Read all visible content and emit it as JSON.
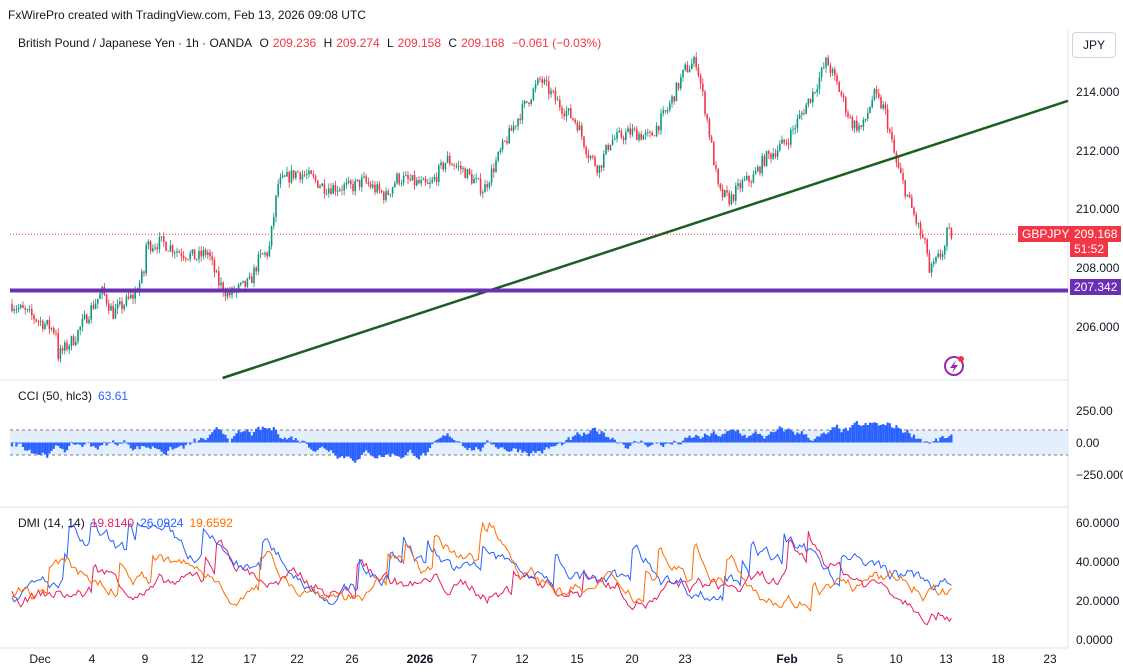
{
  "header": {
    "attribution": "FxWirePro created with TradingView.com, Feb 13, 2026 09:08 UTC",
    "currency_button": "JPY"
  },
  "legend": {
    "symbol": "British Pound / Japanese Yen · 1h · OANDA",
    "open_label": "O",
    "open": "209.236",
    "high_label": "H",
    "high": "209.274",
    "low_label": "L",
    "low": "209.158",
    "close_label": "C",
    "close": "209.168",
    "change": "−0.061 (−0.03%)"
  },
  "badges": {
    "ticker": "GBPJPY",
    "price": "209.168",
    "countdown": "51:52",
    "level": "207.342"
  },
  "colors": {
    "up": "#089981",
    "down": "#f23645",
    "trendline": "#1b5e20",
    "support": "#6a2fb3",
    "cci": "#2962ff",
    "cci_band": "#e3effd",
    "di_plus": "#e91e63",
    "di_minus": "#2962ff",
    "adx": "#ff6d00"
  },
  "icons": {
    "sync": "lightning-sync-icon"
  },
  "cci": {
    "title": "CCI (50, hlc3)",
    "value": "63.61",
    "ticks": [
      "250.00",
      "0.00",
      "−250.000"
    ]
  },
  "dmi": {
    "title": "DMI (14, 14)",
    "v1": "19.8140",
    "v2": "26.0924",
    "v3": "19.6592",
    "ticks": [
      "60.0000",
      "40.0000",
      "20.0000",
      "0.0000"
    ]
  },
  "x_ticks": [
    "Dec",
    "4",
    "9",
    "12",
    "17",
    "22",
    "26",
    "2026",
    "7",
    "12",
    "15",
    "20",
    "23",
    "Feb",
    "5",
    "10",
    "13",
    "18",
    "23"
  ],
  "chart_data": {
    "type": "candlestick",
    "title": "British Pound / Japanese Yen · 1h · OANDA",
    "y_ticks": [
      "214.000",
      "212.000",
      "210.000",
      "208.000",
      "206.000"
    ],
    "ylim": [
      204.5,
      215.8
    ],
    "x_labels": [
      "Dec",
      "4",
      "9",
      "12",
      "17",
      "22",
      "26",
      "2026",
      "7",
      "12",
      "15",
      "20",
      "23",
      "Feb",
      "5",
      "10",
      "13",
      "18",
      "23"
    ],
    "path_points": [
      [
        "Dec 1",
        206.9
      ],
      [
        "Dec 2",
        206.0
      ],
      [
        "Dec 2",
        205.2
      ],
      [
        "Dec 3",
        205.8
      ],
      [
        "Dec 4",
        206.8
      ],
      [
        "Dec 5",
        207.3
      ],
      [
        "Dec 6",
        206.6
      ],
      [
        "Dec 8",
        207.2
      ],
      [
        "Dec 9",
        208.0
      ],
      [
        "Dec 9",
        208.8
      ],
      [
        "Dec 10",
        208.9
      ],
      [
        "Dec 11",
        208.6
      ],
      [
        "Dec 12",
        208.4
      ],
      [
        "Dec 13",
        208.6
      ],
      [
        "Dec 14",
        207.6
      ],
      [
        "Dec 15",
        207.2
      ],
      [
        "Dec 16",
        207.4
      ],
      [
        "Dec 17",
        207.6
      ],
      [
        "Dec 18",
        208.4
      ],
      [
        "Dec 19",
        208.6
      ],
      [
        "Dec 20",
        210.8
      ],
      [
        "Dec 22",
        211.2
      ],
      [
        "Dec 23",
        211.0
      ],
      [
        "Dec 24",
        210.7
      ],
      [
        "Dec 26",
        210.7
      ],
      [
        "Dec 27",
        210.9
      ],
      [
        "Dec 29",
        210.4
      ],
      [
        "Dec 30",
        211.0
      ],
      [
        "Jan 1",
        210.8
      ],
      [
        "Jan 2",
        210.7
      ],
      [
        "Jan 4",
        211.6
      ],
      [
        "Jan 6",
        211.2
      ],
      [
        "Jan 8",
        210.6
      ],
      [
        "Jan 10",
        212.0
      ],
      [
        "Jan 12",
        213.2
      ],
      [
        "Jan 13",
        214.2
      ],
      [
        "Jan 14",
        213.4
      ],
      [
        "Jan 15",
        212.8
      ],
      [
        "Jan 16",
        211.8
      ],
      [
        "Jan 17",
        211.3
      ],
      [
        "Jan 18",
        212.2
      ],
      [
        "Jan 20",
        212.5
      ],
      [
        "Jan 21",
        212.3
      ],
      [
        "Jan 22",
        213.2
      ],
      [
        "Jan 23",
        214.5
      ],
      [
        "Jan 24",
        214.8
      ],
      [
        "Jan 25",
        212.8
      ],
      [
        "Jan 26",
        210.5
      ],
      [
        "Jan 27",
        210.3
      ],
      [
        "Jan 28",
        210.8
      ],
      [
        "Jan 29",
        211.0
      ],
      [
        "Jan 30",
        211.6
      ],
      [
        "Feb 1",
        212.2
      ],
      [
        "Feb 2",
        213.0
      ],
      [
        "Feb 3",
        213.8
      ],
      [
        "Feb 4",
        214.8
      ],
      [
        "Feb 5",
        213.8
      ],
      [
        "Feb 6",
        212.8
      ],
      [
        "Feb 7",
        212.6
      ],
      [
        "Feb 8",
        213.7
      ],
      [
        "Feb 9",
        213.2
      ],
      [
        "Feb 10",
        211.5
      ],
      [
        "Feb 11",
        209.9
      ],
      [
        "Feb 12",
        208.4
      ],
      [
        "Feb 12",
        207.9
      ],
      [
        "Feb 13",
        208.8
      ],
      [
        "Feb 13",
        209.168
      ]
    ],
    "annotations": {
      "trendline": {
        "from": [
          "Dec 13",
          204.5
        ],
        "to": [
          "Feb 23",
          213.5
        ]
      },
      "support_level": 207.342,
      "last_price": 209.168
    }
  }
}
